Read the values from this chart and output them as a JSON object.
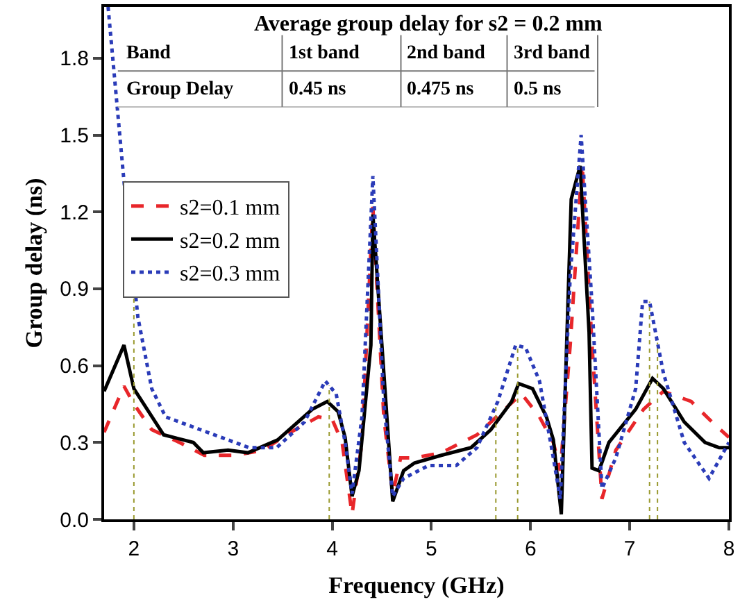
{
  "chart_data": {
    "type": "line",
    "title": "Average group delay for s2 = 0.2 mm",
    "xlabel": "Frequency (GHz)",
    "ylabel": "Group delay (ns)",
    "annotations": [
      "Band",
      "1st band",
      "2nd band",
      "3rd band",
      "Group Delay",
      "0.45 ns",
      "0.475 ns",
      "0.5 ns"
    ],
    "series": [
      {
        "name": "s2=0.1 mm",
        "color": "#e8262a",
        "line_style": "dashed",
        "x": [
          1.7,
          1.8,
          1.9,
          2.0,
          2.18,
          2.46,
          2.71,
          3.02,
          3.3,
          3.58,
          3.86,
          4.0,
          4.1,
          4.2,
          4.3,
          4.41,
          4.52,
          4.61,
          4.69,
          4.83,
          5.1,
          5.46,
          5.74,
          5.91,
          6.09,
          6.23,
          6.3,
          6.4,
          6.52,
          6.62,
          6.72,
          6.86,
          7.14,
          7.34,
          7.62,
          7.83,
          8.0
        ],
        "values": [
          0.34,
          0.43,
          0.52,
          0.45,
          0.35,
          0.3,
          0.25,
          0.25,
          0.27,
          0.34,
          0.4,
          0.39,
          0.3,
          0.02,
          0.3,
          1.22,
          0.4,
          0.1,
          0.24,
          0.24,
          0.26,
          0.33,
          0.43,
          0.49,
          0.4,
          0.3,
          0.19,
          0.68,
          1.39,
          0.68,
          0.08,
          0.27,
          0.43,
          0.5,
          0.46,
          0.38,
          0.32
        ]
      },
      {
        "name": "s2=0.2 mm",
        "color": "#000000",
        "line_style": "solid",
        "x": [
          1.7,
          1.9,
          2.0,
          2.3,
          2.6,
          2.7,
          2.95,
          3.15,
          3.45,
          3.8,
          3.95,
          4.06,
          4.13,
          4.2,
          4.27,
          4.39,
          4.41,
          4.61,
          4.72,
          4.83,
          5.1,
          5.4,
          5.6,
          5.81,
          5.88,
          6.02,
          6.16,
          6.23,
          6.31,
          6.41,
          6.5,
          6.59,
          6.62,
          6.69,
          6.79,
          7.06,
          7.23,
          7.34,
          7.55,
          7.76,
          7.9,
          8.0
        ],
        "values": [
          0.5,
          0.68,
          0.51,
          0.33,
          0.3,
          0.26,
          0.27,
          0.26,
          0.31,
          0.43,
          0.46,
          0.42,
          0.32,
          0.09,
          0.19,
          0.68,
          1.19,
          0.07,
          0.19,
          0.22,
          0.25,
          0.28,
          0.35,
          0.46,
          0.53,
          0.51,
          0.4,
          0.31,
          0.02,
          1.25,
          1.38,
          0.73,
          0.2,
          0.19,
          0.3,
          0.43,
          0.55,
          0.51,
          0.38,
          0.3,
          0.28,
          0.28
        ]
      },
      {
        "name": "s2=0.3 mm",
        "color": "#2a3bb8",
        "line_style": "dotted",
        "x": [
          1.74,
          1.9,
          2.04,
          2.18,
          2.32,
          2.6,
          2.88,
          3.16,
          3.44,
          3.72,
          3.93,
          4.04,
          4.13,
          4.2,
          4.3,
          4.41,
          4.52,
          4.61,
          4.72,
          4.97,
          5.25,
          5.46,
          5.67,
          5.85,
          5.95,
          6.09,
          6.23,
          6.3,
          6.4,
          6.51,
          6.62,
          6.72,
          6.86,
          7.06,
          7.13,
          7.2,
          7.34,
          7.55,
          7.8,
          8.0
        ],
        "values": [
          2.0,
          1.32,
          0.79,
          0.51,
          0.4,
          0.36,
          0.32,
          0.28,
          0.28,
          0.38,
          0.54,
          0.49,
          0.3,
          0.1,
          0.4,
          1.34,
          0.46,
          0.09,
          0.16,
          0.21,
          0.21,
          0.28,
          0.46,
          0.68,
          0.67,
          0.54,
          0.24,
          0.08,
          0.95,
          1.5,
          0.84,
          0.12,
          0.24,
          0.51,
          0.85,
          0.85,
          0.57,
          0.3,
          0.16,
          0.3
        ]
      }
    ],
    "ref_lines": [
      {
        "axis": "x",
        "value": 2.0,
        "color": "#9a9a30",
        "line_style": "dotted"
      },
      {
        "axis": "x",
        "value": 3.97,
        "color": "#9a9a30",
        "line_style": "dotted"
      },
      {
        "axis": "x",
        "value": 5.65,
        "color": "#9a9a30",
        "line_style": "dotted"
      },
      {
        "axis": "x",
        "value": 5.87,
        "color": "#9a9a30",
        "line_style": "dotted"
      },
      {
        "axis": "x",
        "value": 7.2,
        "color": "#9a9a30",
        "line_style": "dotted"
      },
      {
        "axis": "x",
        "value": 7.28,
        "color": "#9a9a30",
        "line_style": "dotted"
      }
    ],
    "xlim": [
      1.7,
      8
    ],
    "xticks": [
      2,
      3,
      4,
      5,
      6,
      7,
      8
    ],
    "ylim": [
      0,
      2.0
    ],
    "yticks": [
      {
        "value": 0,
        "label": "0.0"
      },
      {
        "value": 0.3,
        "label": "0.3"
      },
      {
        "value": 0.6,
        "label": "0.6"
      },
      {
        "value": 0.9,
        "label": "0.9"
      },
      {
        "value": 1.2,
        "label": "1.2"
      },
      {
        "value": 1.5,
        "label": "1.5"
      },
      {
        "value": 1.8,
        "label": "1.8"
      }
    ],
    "grid": false,
    "legend": "top left",
    "marker": "none"
  }
}
